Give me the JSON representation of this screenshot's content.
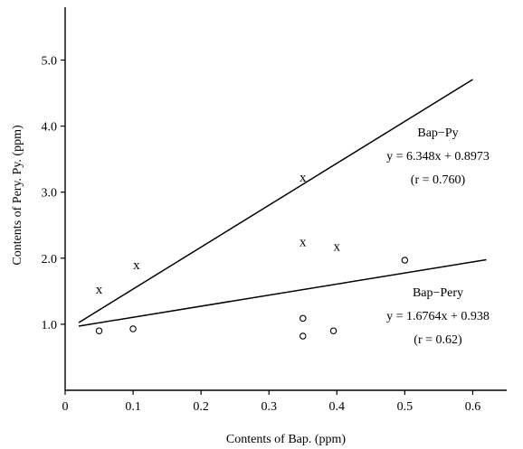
{
  "chart_data": {
    "type": "scatter",
    "xlabel": "Contents of Bap. (ppm)",
    "ylabel": "Contents of Pery. Py. (ppm)",
    "xlim": [
      0,
      0.65
    ],
    "ylim": [
      0,
      5.8
    ],
    "x_ticks": [
      "0",
      "0.1",
      "0.2",
      "0.3",
      "0.4",
      "0.5",
      "0.6"
    ],
    "y_ticks": [
      "1.0",
      "2.0",
      "3.0",
      "4.0",
      "5.0"
    ],
    "grid": false,
    "series": [
      {
        "name": "Bap−Py",
        "marker": "x",
        "points": [
          {
            "x": 0.05,
            "y": 1.53
          },
          {
            "x": 0.105,
            "y": 1.9
          },
          {
            "x": 0.35,
            "y": 3.23
          },
          {
            "x": 0.35,
            "y": 2.25
          },
          {
            "x": 0.4,
            "y": 2.18
          }
        ],
        "fit": {
          "slope": 6.348,
          "intercept": 0.8973,
          "x_range": [
            0.02,
            0.6
          ]
        },
        "annotation": [
          "Bap−Py",
          "y = 6.348x + 0.8973",
          "(r = 0.760)"
        ]
      },
      {
        "name": "Bap−Pery",
        "marker": "o",
        "points": [
          {
            "x": 0.05,
            "y": 0.9
          },
          {
            "x": 0.1,
            "y": 0.93
          },
          {
            "x": 0.35,
            "y": 1.09
          },
          {
            "x": 0.35,
            "y": 0.82
          },
          {
            "x": 0.395,
            "y": 0.9
          },
          {
            "x": 0.5,
            "y": 1.97
          }
        ],
        "fit": {
          "slope": 1.6764,
          "intercept": 0.938,
          "x_range": [
            0.02,
            0.62
          ]
        },
        "annotation": [
          "Bap−Pery",
          "y = 1.6764x + 0.938",
          "(r = 0.62)"
        ]
      }
    ]
  }
}
